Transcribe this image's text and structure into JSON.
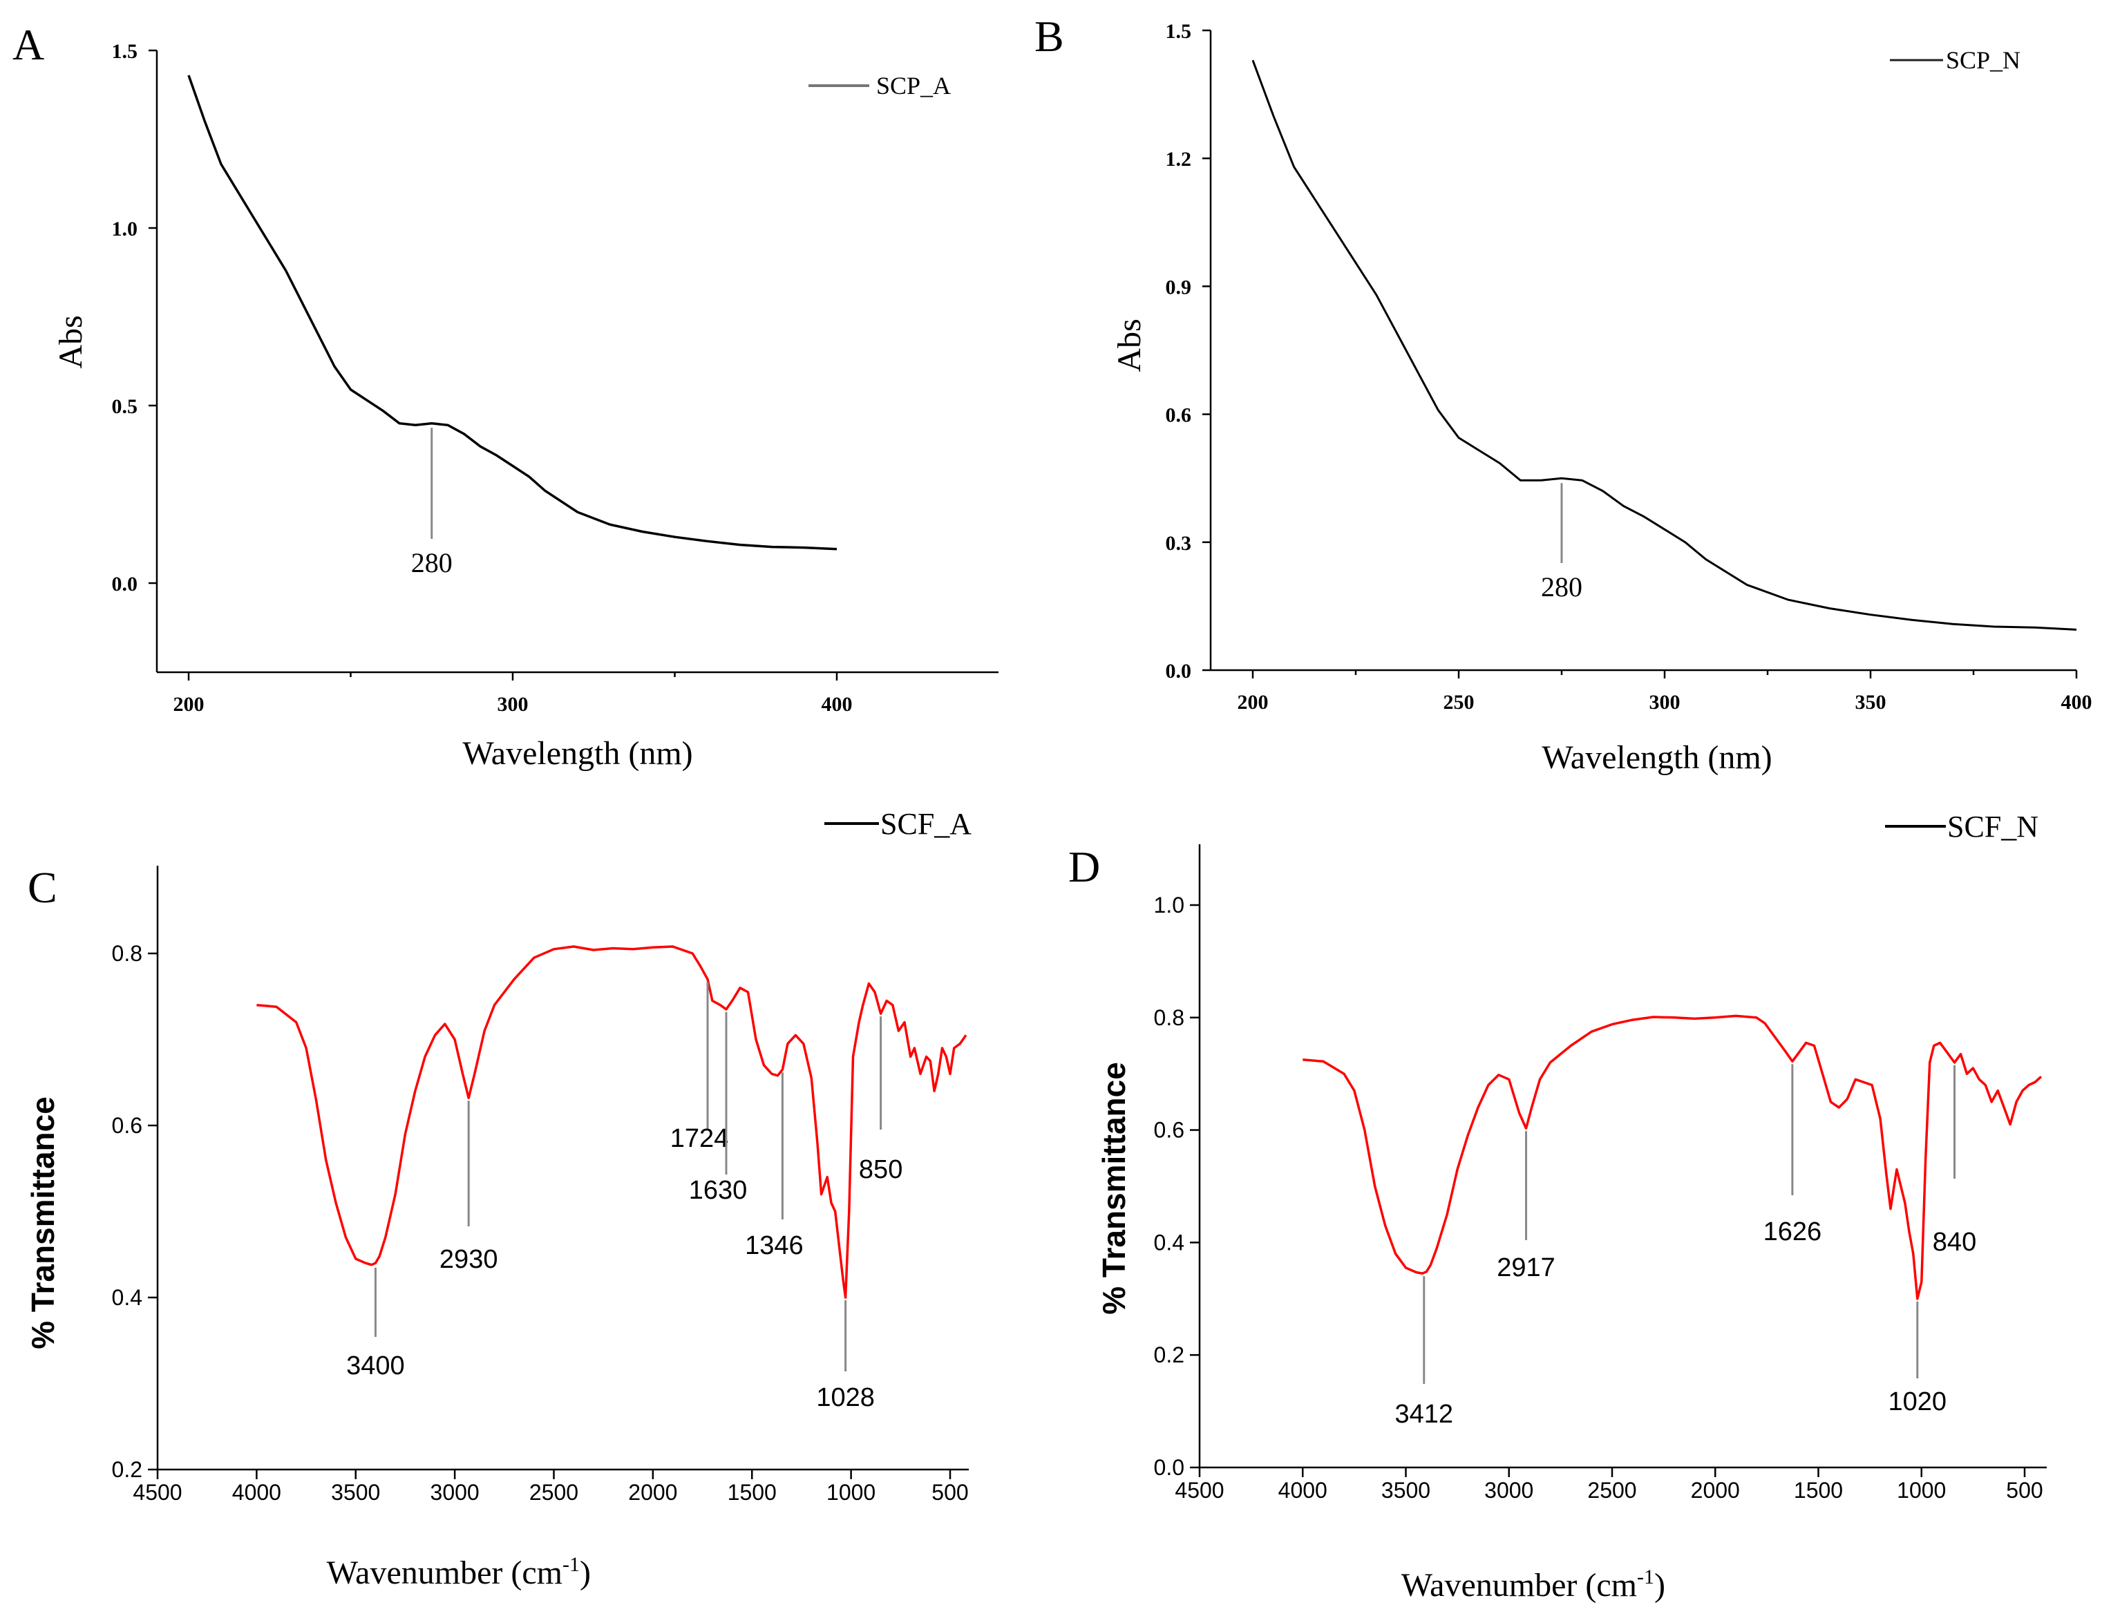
{
  "chart_data": [
    {
      "panel": "A",
      "type": "line",
      "title": "",
      "xlabel": "Wavelength (nm)",
      "ylabel": "Abs",
      "xlim": [
        190,
        440
      ],
      "ylim": [
        -0.25,
        1.5
      ],
      "xticks": [
        200,
        300,
        400
      ],
      "xtick_labels": [
        "200",
        "300",
        "400"
      ],
      "yticks": [
        0.0,
        0.5,
        1.0,
        1.5
      ],
      "ytick_labels": [
        "0.0",
        "0.5",
        "1.0",
        "1.5"
      ],
      "legend": [
        "SCP_A"
      ],
      "legend_position": "top-right",
      "series": [
        {
          "name": "SCP_A",
          "color": "#000000",
          "x": [
            200,
            205,
            210,
            220,
            230,
            240,
            245,
            250,
            255,
            260,
            265,
            270,
            275,
            280,
            285,
            290,
            295,
            300,
            305,
            310,
            320,
            330,
            340,
            350,
            360,
            370,
            380,
            390,
            400
          ],
          "y": [
            1.43,
            1.3,
            1.18,
            1.03,
            0.88,
            0.7,
            0.61,
            0.545,
            0.515,
            0.485,
            0.45,
            0.445,
            0.45,
            0.445,
            0.42,
            0.385,
            0.36,
            0.33,
            0.3,
            0.26,
            0.2,
            0.165,
            0.145,
            0.13,
            0.118,
            0.108,
            0.102,
            0.1,
            0.096
          ]
        }
      ],
      "annotations": [
        {
          "x": 275,
          "y": 0.445,
          "label": "280"
        }
      ]
    },
    {
      "panel": "B",
      "type": "line",
      "title": "",
      "xlabel": "Wavelength (nm)",
      "ylabel": "Abs",
      "xlim": [
        190,
        400
      ],
      "ylim": [
        0.0,
        1.5
      ],
      "xticks": [
        200,
        250,
        300,
        350,
        400
      ],
      "xtick_labels": [
        "200",
        "250",
        "300",
        "350",
        "400"
      ],
      "yticks": [
        0.0,
        0.3,
        0.6,
        0.9,
        1.2,
        1.5
      ],
      "ytick_labels": [
        "0.0",
        "0.3",
        "0.6",
        "0.9",
        "1.2",
        "1.5"
      ],
      "legend": [
        "SCP_N"
      ],
      "legend_position": "top-right",
      "series": [
        {
          "name": "SCP_N",
          "color": "#000000",
          "x": [
            200,
            205,
            210,
            220,
            230,
            240,
            245,
            250,
            255,
            260,
            265,
            270,
            275,
            280,
            285,
            290,
            295,
            300,
            305,
            310,
            320,
            330,
            340,
            350,
            360,
            370,
            380,
            390,
            400
          ],
          "y": [
            1.43,
            1.3,
            1.18,
            1.03,
            0.88,
            0.7,
            0.61,
            0.545,
            0.515,
            0.485,
            0.445,
            0.445,
            0.45,
            0.445,
            0.42,
            0.385,
            0.36,
            0.33,
            0.3,
            0.26,
            0.2,
            0.165,
            0.145,
            0.13,
            0.118,
            0.108,
            0.102,
            0.1,
            0.095
          ]
        }
      ],
      "annotations": [
        {
          "x": 275,
          "y": 0.445,
          "label": "280"
        }
      ]
    },
    {
      "panel": "C",
      "type": "line",
      "title": "",
      "xlabel": "Wavenumber (cm",
      "xlabel_sup": "-1",
      "xlabel_end": ")",
      "ylabel": "% Transmittance",
      "xlim": [
        4500,
        400
      ],
      "ylim": [
        0.2,
        0.9
      ],
      "xticks": [
        4500,
        4000,
        3500,
        3000,
        2500,
        2000,
        1500,
        1000,
        500
      ],
      "xtick_labels": [
        "4500",
        "4000",
        "3500",
        "3000",
        "2500",
        "2000",
        "1500",
        "1000",
        "500"
      ],
      "yticks": [
        0.2,
        0.4,
        0.6,
        0.8
      ],
      "ytick_labels": [
        "0.2",
        "0.4",
        "0.6",
        "0.8"
      ],
      "legend": [
        "SCF_A"
      ],
      "legend_position": "top-right",
      "series": [
        {
          "name": "SCF_A",
          "color": "#ff0000",
          "x": [
            4000,
            3900,
            3800,
            3750,
            3700,
            3650,
            3600,
            3550,
            3500,
            3450,
            3420,
            3400,
            3380,
            3350,
            3300,
            3250,
            3200,
            3150,
            3100,
            3050,
            3000,
            2960,
            2930,
            2900,
            2850,
            2800,
            2700,
            2600,
            2500,
            2400,
            2300,
            2200,
            2100,
            2000,
            1900,
            1800,
            1760,
            1724,
            1700,
            1660,
            1630,
            1600,
            1560,
            1520,
            1480,
            1440,
            1400,
            1370,
            1346,
            1320,
            1280,
            1240,
            1200,
            1170,
            1150,
            1120,
            1100,
            1080,
            1060,
            1040,
            1028,
            1010,
            990,
            960,
            940,
            910,
            880,
            850,
            820,
            790,
            760,
            730,
            700,
            680,
            650,
            620,
            600,
            580,
            560,
            540,
            520,
            500,
            480,
            450,
            420
          ],
          "y": [
            0.74,
            0.738,
            0.72,
            0.69,
            0.63,
            0.56,
            0.51,
            0.47,
            0.445,
            0.44,
            0.438,
            0.44,
            0.448,
            0.47,
            0.52,
            0.59,
            0.64,
            0.68,
            0.705,
            0.718,
            0.7,
            0.66,
            0.632,
            0.66,
            0.71,
            0.74,
            0.77,
            0.795,
            0.805,
            0.808,
            0.804,
            0.806,
            0.805,
            0.807,
            0.808,
            0.8,
            0.785,
            0.77,
            0.745,
            0.74,
            0.735,
            0.745,
            0.76,
            0.755,
            0.7,
            0.67,
            0.66,
            0.658,
            0.665,
            0.695,
            0.705,
            0.695,
            0.655,
            0.58,
            0.52,
            0.54,
            0.51,
            0.5,
            0.46,
            0.42,
            0.4,
            0.5,
            0.68,
            0.72,
            0.74,
            0.765,
            0.755,
            0.73,
            0.745,
            0.74,
            0.71,
            0.72,
            0.68,
            0.69,
            0.66,
            0.68,
            0.675,
            0.64,
            0.66,
            0.69,
            0.68,
            0.66,
            0.69,
            0.695,
            0.705
          ]
        }
      ],
      "annotations": [
        {
          "x": 3400,
          "y": 0.438,
          "label": "3400"
        },
        {
          "x": 2930,
          "y": 0.632,
          "label": "2930"
        },
        {
          "x": 1724,
          "y": 0.77,
          "label": "1724"
        },
        {
          "x": 1630,
          "y": 0.735,
          "label": "1630"
        },
        {
          "x": 1346,
          "y": 0.665,
          "label": "1346"
        },
        {
          "x": 1028,
          "y": 0.4,
          "label": "1028"
        },
        {
          "x": 850,
          "y": 0.73,
          "label": "850"
        }
      ]
    },
    {
      "panel": "D",
      "type": "line",
      "title": "",
      "xlabel": "Wavenumber (cm",
      "xlabel_sup": "-1",
      "xlabel_end": ")",
      "ylabel": "% Transmittance",
      "xlim": [
        4500,
        400
      ],
      "ylim": [
        0.0,
        1.1
      ],
      "xticks": [
        4500,
        4000,
        3500,
        3000,
        2500,
        2000,
        1500,
        1000,
        500
      ],
      "xtick_labels": [
        "4500",
        "4000",
        "3500",
        "3000",
        "2500",
        "2000",
        "1500",
        "1000",
        "500"
      ],
      "yticks": [
        0.0,
        0.2,
        0.4,
        0.6,
        0.8,
        1.0
      ],
      "ytick_labels": [
        "0.0",
        "0.2",
        "0.4",
        "0.6",
        "0.8",
        "1.0"
      ],
      "legend": [
        "SCF_N"
      ],
      "legend_position": "top-right",
      "series": [
        {
          "name": "SCF_N",
          "color": "#ff0000",
          "x": [
            4000,
            3900,
            3800,
            3750,
            3700,
            3650,
            3600,
            3550,
            3500,
            3450,
            3420,
            3400,
            3380,
            3350,
            3300,
            3250,
            3200,
            3150,
            3100,
            3050,
            3000,
            2950,
            2917,
            2890,
            2850,
            2800,
            2700,
            2600,
            2500,
            2400,
            2300,
            2200,
            2100,
            2000,
            1900,
            1800,
            1760,
            1700,
            1660,
            1626,
            1600,
            1560,
            1520,
            1480,
            1440,
            1400,
            1360,
            1320,
            1280,
            1240,
            1200,
            1170,
            1150,
            1120,
            1100,
            1080,
            1060,
            1040,
            1020,
            1000,
            980,
            960,
            940,
            910,
            880,
            840,
            810,
            780,
            750,
            720,
            690,
            660,
            630,
            600,
            570,
            540,
            510,
            480,
            450,
            420
          ],
          "y": [
            0.725,
            0.722,
            0.7,
            0.67,
            0.6,
            0.5,
            0.43,
            0.38,
            0.355,
            0.347,
            0.345,
            0.348,
            0.36,
            0.39,
            0.45,
            0.53,
            0.59,
            0.64,
            0.68,
            0.698,
            0.69,
            0.63,
            0.603,
            0.64,
            0.69,
            0.72,
            0.75,
            0.775,
            0.788,
            0.796,
            0.801,
            0.8,
            0.798,
            0.8,
            0.803,
            0.8,
            0.79,
            0.76,
            0.74,
            0.722,
            0.735,
            0.755,
            0.75,
            0.7,
            0.65,
            0.64,
            0.655,
            0.69,
            0.685,
            0.68,
            0.62,
            0.52,
            0.46,
            0.53,
            0.5,
            0.47,
            0.42,
            0.38,
            0.3,
            0.33,
            0.55,
            0.72,
            0.75,
            0.755,
            0.74,
            0.72,
            0.735,
            0.7,
            0.71,
            0.69,
            0.68,
            0.65,
            0.67,
            0.64,
            0.61,
            0.65,
            0.67,
            0.68,
            0.685,
            0.695
          ]
        }
      ],
      "annotations": [
        {
          "x": 3412,
          "y": 0.345,
          "label": "3412"
        },
        {
          "x": 2917,
          "y": 0.603,
          "label": "2917"
        },
        {
          "x": 1626,
          "y": 0.722,
          "label": "1626"
        },
        {
          "x": 1020,
          "y": 0.3,
          "label": "1020"
        },
        {
          "x": 840,
          "y": 0.72,
          "label": "840"
        }
      ]
    }
  ]
}
